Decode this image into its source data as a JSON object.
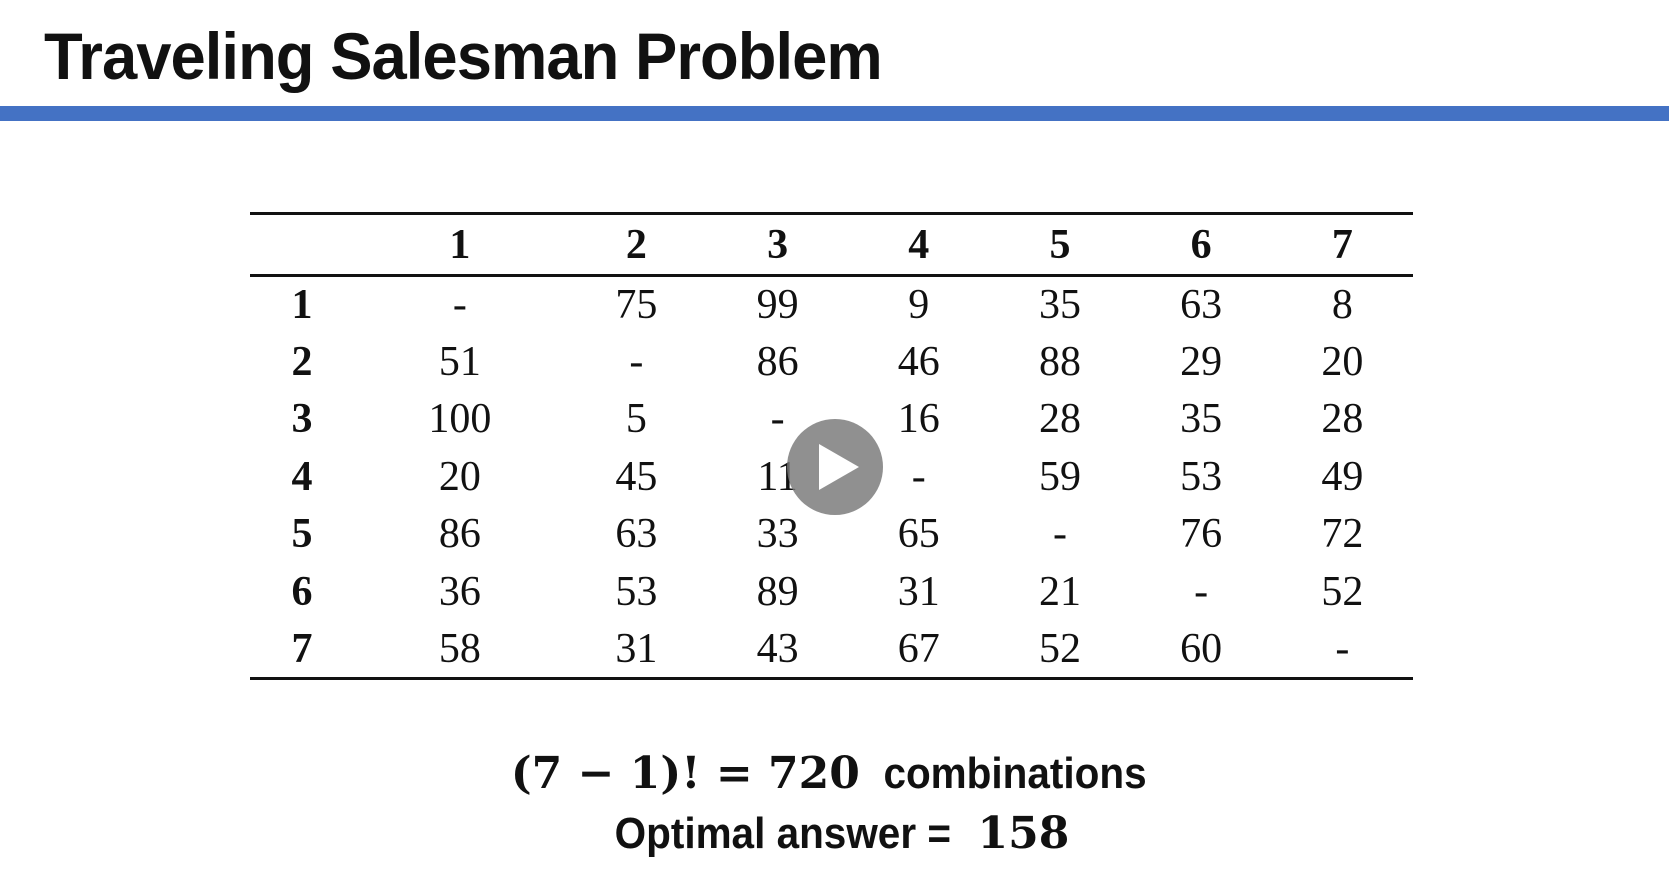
{
  "slide": {
    "title": "Traveling Salesman Problem",
    "accent_color": "#4472c4"
  },
  "matrix": {
    "column_headers": [
      "1",
      "2",
      "3",
      "4",
      "5",
      "6",
      "7"
    ],
    "rows": [
      {
        "label": "1",
        "cells": [
          "-",
          "75",
          "99",
          "9",
          "35",
          "63",
          "8"
        ]
      },
      {
        "label": "2",
        "cells": [
          "51",
          "-",
          "86",
          "46",
          "88",
          "29",
          "20"
        ]
      },
      {
        "label": "3",
        "cells": [
          "100",
          "5",
          "-",
          "16",
          "28",
          "35",
          "28"
        ]
      },
      {
        "label": "4",
        "cells": [
          "20",
          "45",
          "11",
          "-",
          "59",
          "53",
          "49"
        ]
      },
      {
        "label": "5",
        "cells": [
          "86",
          "63",
          "33",
          "65",
          "-",
          "76",
          "72"
        ]
      },
      {
        "label": "6",
        "cells": [
          "36",
          "53",
          "89",
          "31",
          "21",
          "-",
          "52"
        ]
      },
      {
        "label": "7",
        "cells": [
          "58",
          "31",
          "43",
          "67",
          "52",
          "60",
          "-"
        ]
      }
    ]
  },
  "formula": {
    "expression": "(7 − 1)! = 720",
    "suffix": "combinations",
    "answer_label": "Optimal answer =",
    "answer_value": "158"
  },
  "player": {
    "play_icon": "play-icon"
  }
}
